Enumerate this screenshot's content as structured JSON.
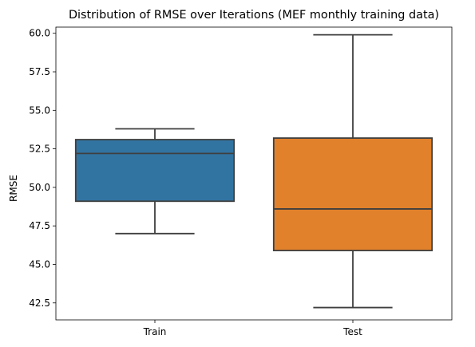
{
  "chart_data": {
    "type": "box",
    "title": "Distribution of RMSE over Iterations (MEF monthly training data)",
    "xlabel": "",
    "ylabel": "RMSE",
    "ylim": [
      41.4,
      60.4
    ],
    "yticks": [
      42.5,
      45.0,
      47.5,
      50.0,
      52.5,
      55.0,
      57.5,
      60.0
    ],
    "ytick_labels": [
      "42.5",
      "45.0",
      "47.5",
      "50.0",
      "52.5",
      "55.0",
      "57.5",
      "60.0"
    ],
    "grid": false,
    "legend": "none",
    "categories": [
      "Train",
      "Test"
    ],
    "boxes": [
      {
        "category": "Train",
        "whisker_low": 47.0,
        "q1": 49.1,
        "median": 52.2,
        "q3": 53.1,
        "whisker_high": 53.8,
        "color": "#3274a1"
      },
      {
        "category": "Test",
        "whisker_low": 42.2,
        "q1": 45.9,
        "median": 48.6,
        "q3": 53.2,
        "whisker_high": 59.9,
        "color": "#e1812c"
      }
    ],
    "line_color": "#3f3f3f"
  }
}
